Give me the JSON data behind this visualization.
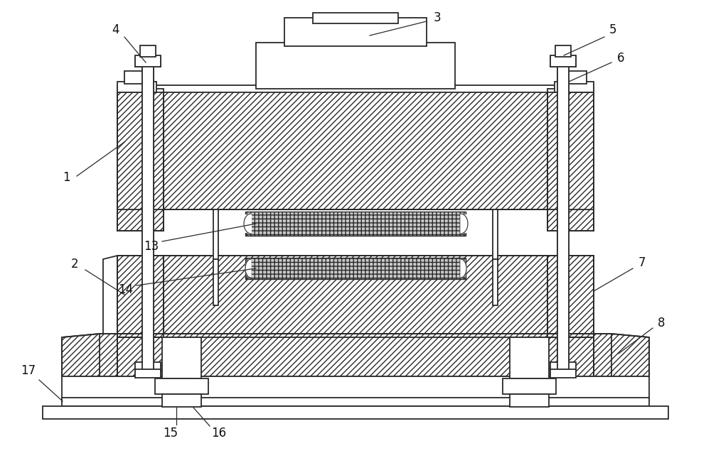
{
  "fig_width": 10.0,
  "fig_height": 6.45,
  "bg_color": "#ffffff",
  "line_color": "#2a2a2a",
  "lw": 1.3,
  "label_fs": 12,
  "label_color": "#111111"
}
